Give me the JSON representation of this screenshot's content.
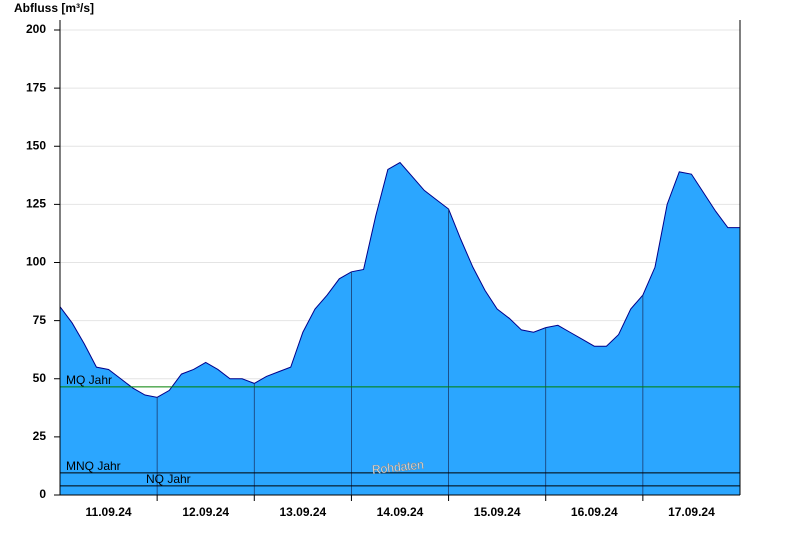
{
  "chart_data": {
    "type": "area",
    "y_label": "Abfluss [m³/s]",
    "color": "#2ba6ff",
    "line_color": "#00008b",
    "x": [
      0,
      0.125,
      0.25,
      0.375,
      0.5,
      0.625,
      0.75,
      0.875,
      1,
      1.125,
      1.25,
      1.375,
      1.5,
      1.625,
      1.75,
      1.875,
      2,
      2.125,
      2.25,
      2.375,
      2.5,
      2.625,
      2.75,
      2.875,
      3,
      3.125,
      3.25,
      3.375,
      3.5,
      3.625,
      3.75,
      3.875,
      4,
      4.125,
      4.25,
      4.375,
      4.5,
      4.625,
      4.75,
      4.875,
      5,
      5.125,
      5.25,
      5.375,
      5.5,
      5.625,
      5.75,
      5.875,
      6,
      6.125,
      6.25,
      6.375,
      6.5,
      6.625,
      6.75,
      6.875,
      7
    ],
    "values": [
      81,
      74,
      65,
      55,
      54,
      50,
      46,
      43,
      42,
      45,
      52,
      54,
      57,
      54,
      50,
      50,
      48,
      51,
      53,
      55,
      70,
      80,
      86,
      93,
      96,
      97,
      120,
      140,
      143,
      137,
      131,
      127,
      123,
      110,
      98,
      88,
      80,
      76,
      71,
      70,
      72,
      73,
      70,
      67,
      64,
      64,
      69,
      80,
      86,
      98,
      125,
      139,
      138,
      130,
      122,
      115,
      115
    ],
    "xlim": [
      0,
      7
    ],
    "xticks": [
      {
        "value": 0.5,
        "label": "11.09.24"
      },
      {
        "value": 1.5,
        "label": "12.09.24"
      },
      {
        "value": 2.5,
        "label": "13.09.24"
      },
      {
        "value": 3.5,
        "label": "14.09.24"
      },
      {
        "value": 4.5,
        "label": "15.09.24"
      },
      {
        "value": 5.5,
        "label": "16.09.24"
      },
      {
        "value": 6.5,
        "label": "17.09.24"
      }
    ],
    "xgrid": [
      1,
      2,
      3,
      4,
      5,
      6
    ],
    "ylim": [
      0,
      200
    ],
    "yticks": [
      0,
      25,
      50,
      75,
      100,
      125,
      150,
      175,
      200
    ],
    "grid": true,
    "reference_lines": [
      {
        "label": "MQ Jahr",
        "value": 46.5,
        "color": "#008000"
      },
      {
        "label": "MNQ Jahr",
        "value": 9.5,
        "color": "#000000"
      },
      {
        "label": "NQ Jahr",
        "value": 3.9,
        "color": "#000000"
      }
    ],
    "watermark": "Rohdaten"
  }
}
